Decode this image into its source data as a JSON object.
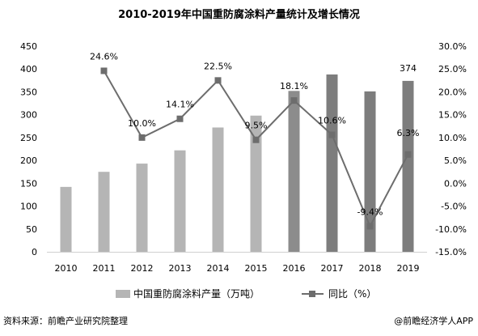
{
  "title": "2010-2019年中国重防腐涂料产量统计及增长情况",
  "source": "资料来源：前瞻产业研究院整理",
  "credit": "@前瞻经济学人APP",
  "chart_data": {
    "type": "bar",
    "categories": [
      "2010",
      "2011",
      "2012",
      "2013",
      "2014",
      "2015",
      "2016",
      "2017",
      "2018",
      "2019"
    ],
    "series": [
      {
        "name": "中国重防腐涂料产量（万吨）",
        "kind": "bar",
        "axis": "left",
        "values": [
          142,
          175,
          193,
          222,
          272,
          298,
          352,
          388,
          351,
          374
        ],
        "colors": [
          "#b5b5b5",
          "#b5b5b5",
          "#b5b5b5",
          "#b5b5b5",
          "#b5b5b5",
          "#b5b5b5",
          "#8c8c8c",
          "#7d7d7d",
          "#7d7d7d",
          "#7d7d7d"
        ]
      },
      {
        "name": "同比（%）",
        "kind": "line",
        "axis": "right",
        "values": [
          null,
          24.6,
          10.0,
          14.1,
          22.5,
          9.5,
          18.1,
          10.6,
          -9.4,
          6.3
        ],
        "color": "#6d6d6d"
      }
    ],
    "bar_data_labels": [
      null,
      null,
      null,
      null,
      null,
      null,
      null,
      null,
      null,
      "374"
    ],
    "line_data_labels": [
      null,
      "24.6%",
      "10.0%",
      "14.1%",
      "22.5%",
      "9.5%",
      "18.1%",
      "10.6%",
      "-9.4%",
      "6.3%"
    ],
    "left_axis": {
      "ylim": [
        0,
        450
      ],
      "ticks": [
        "0",
        "50",
        "100",
        "150",
        "200",
        "250",
        "300",
        "350",
        "400",
        "450"
      ]
    },
    "right_axis": {
      "ylim": [
        -15,
        30
      ],
      "ticks": [
        "-15.0%",
        "-10.0%",
        "-5.0%",
        "0.0%",
        "5.0%",
        "10.0%",
        "15.0%",
        "20.0%",
        "25.0%",
        "30.0%"
      ]
    },
    "grid": false,
    "legend_position": "bottom"
  }
}
